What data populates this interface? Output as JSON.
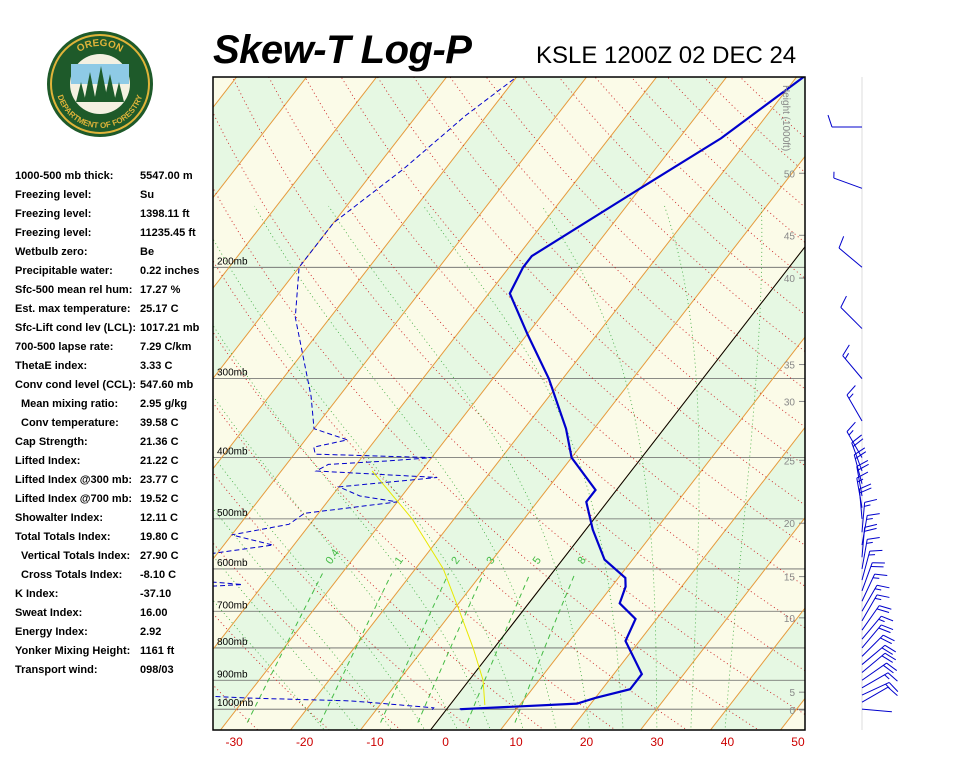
{
  "header": {
    "title": "Skew-T Log-P",
    "station_time": "KSLE 1200Z 02 DEC 24"
  },
  "logo": {
    "top_text": "OREGON",
    "bottom_text": "DEPARTMENT OF FORESTRY",
    "colors": {
      "ring": "#1e5a2a",
      "gold": "#e0b43a",
      "sky": "#8ecae6",
      "tree": "#1d5b2b"
    }
  },
  "stats": [
    {
      "label": "1000-500 mb thick:",
      "value": "5547.00 m",
      "indent": false
    },
    {
      "label": "Freezing level:",
      "value": "Su",
      "indent": false
    },
    {
      "label": "Freezing level:",
      "value": "1398.11 ft",
      "indent": false
    },
    {
      "label": "Freezing level:",
      "value": "11235.45 ft",
      "indent": false
    },
    {
      "label": "Wetbulb zero:",
      "value": "Be",
      "indent": false
    },
    {
      "label": "Precipitable water:",
      "value": "0.22 inches",
      "indent": false
    },
    {
      "label": "Sfc-500 mean rel hum:",
      "value": "17.27 %",
      "indent": false
    },
    {
      "label": "Est. max temperature:",
      "value": "25.17 C",
      "indent": false
    },
    {
      "label": "Sfc-Lift cond lev (LCL):",
      "value": "1017.21 mb",
      "indent": false
    },
    {
      "label": "700-500 lapse rate:",
      "value": "7.29 C/km",
      "indent": false
    },
    {
      "label": "ThetaE index:",
      "value": "3.33 C",
      "indent": false
    },
    {
      "label": "Conv cond level (CCL):",
      "value": "547.60 mb",
      "indent": false
    },
    {
      "label": "Mean mixing ratio:",
      "value": "2.95 g/kg",
      "indent": true
    },
    {
      "label": "Conv temperature:",
      "value": "39.58 C",
      "indent": true
    },
    {
      "label": "Cap Strength:",
      "value": "21.36 C",
      "indent": false
    },
    {
      "label": "Lifted Index:",
      "value": "21.22 C",
      "indent": false
    },
    {
      "label": "Lifted Index @300 mb:",
      "value": "23.77 C",
      "indent": false
    },
    {
      "label": "Lifted Index @700 mb:",
      "value": "19.52 C",
      "indent": false
    },
    {
      "label": "Showalter Index:",
      "value": "12.11 C",
      "indent": false
    },
    {
      "label": "Total Totals Index:",
      "value": "19.80 C",
      "indent": false
    },
    {
      "label": "Vertical Totals Index:",
      "value": "27.90 C",
      "indent": true
    },
    {
      "label": "Cross Totals Index:",
      "value": "-8.10 C",
      "indent": true
    },
    {
      "label": "K Index:",
      "value": "-37.10",
      "indent": false
    },
    {
      "label": "Sweat Index:",
      "value": "16.00",
      "indent": false
    },
    {
      "label": "Energy Index:",
      "value": "2.92",
      "indent": false
    },
    {
      "label": "Yonker Mixing Height:",
      "value": "1161 ft",
      "indent": false
    },
    {
      "label": "Transport wind:",
      "value": "098/03",
      "indent": false
    }
  ],
  "chart_data": {
    "type": "line",
    "xlabel": "",
    "ylabel": "",
    "x_ticks": [
      -30,
      -20,
      -10,
      0,
      10,
      20,
      30,
      40,
      50
    ],
    "x_range": [
      -33,
      51
    ],
    "p_range": [
      1050,
      100
    ],
    "log_pressure_axis": true,
    "skew": "isotherms tilted to the right",
    "pressure_labels": [
      {
        "p": 1000,
        "label": "1000mb"
      },
      {
        "p": 900,
        "label": "900mb"
      },
      {
        "p": 800,
        "label": "800mb"
      },
      {
        "p": 700,
        "label": "700mb"
      },
      {
        "p": 600,
        "label": "600mb"
      },
      {
        "p": 500,
        "label": "500mb"
      },
      {
        "p": 400,
        "label": "400mb"
      },
      {
        "p": 300,
        "label": "300mb"
      },
      {
        "p": 200,
        "label": "200mb"
      }
    ],
    "height_axis": {
      "title": "Height (1000ft)",
      "ticks": [
        {
          "v": "0",
          "p": 1003
        },
        {
          "v": "5",
          "p": 940
        },
        {
          "v": "10",
          "p": 717
        },
        {
          "v": "15",
          "p": 617
        },
        {
          "v": "20",
          "p": 508
        },
        {
          "v": "25",
          "p": 404
        },
        {
          "v": "30",
          "p": 326
        },
        {
          "v": "35",
          "p": 285
        },
        {
          "v": "40",
          "p": 208
        },
        {
          "v": "45",
          "p": 178
        },
        {
          "v": "50",
          "p": 142
        }
      ]
    },
    "mixing_ratio_labels": [
      "0.4",
      "1",
      "2",
      "3",
      "5",
      "8"
    ],
    "series": [
      {
        "role": "temperature",
        "color": "#0000cc",
        "points": [
          [
            1002,
            2
          ],
          [
            1000,
            2
          ],
          [
            990,
            10
          ],
          [
            980,
            18
          ],
          [
            960,
            20
          ],
          [
            930,
            24
          ],
          [
            880,
            24
          ],
          [
            780,
            18
          ],
          [
            720,
            17
          ],
          [
            680,
            13
          ],
          [
            640,
            12
          ],
          [
            620,
            11
          ],
          [
            580,
            6
          ],
          [
            520,
            1
          ],
          [
            470,
            -3
          ],
          [
            450,
            -3
          ],
          [
            400,
            -10
          ],
          [
            360,
            -14
          ],
          [
            300,
            -22
          ],
          [
            255,
            -30
          ],
          [
            220,
            -37
          ],
          [
            200,
            -38
          ],
          [
            192,
            -38
          ],
          [
            150,
            -30
          ],
          [
            125,
            -24
          ],
          [
            100,
            -19
          ]
        ]
      },
      {
        "role": "dewpoint",
        "color": "#0000cc",
        "dashed": true,
        "points": [
          [
            1002,
            -2
          ],
          [
            995,
            -2
          ],
          [
            985,
            -7
          ],
          [
            975,
            -12
          ],
          [
            970,
            -15
          ],
          [
            960,
            -30
          ],
          [
            940,
            -47
          ],
          [
            910,
            -55
          ],
          [
            880,
            -54
          ],
          [
            850,
            -58
          ],
          [
            820,
            -46
          ],
          [
            800,
            -48
          ],
          [
            780,
            -52
          ],
          [
            760,
            -56
          ],
          [
            740,
            -60
          ],
          [
            720,
            -62
          ],
          [
            700,
            -64
          ],
          [
            690,
            -49
          ],
          [
            680,
            -62
          ],
          [
            665,
            -51
          ],
          [
            650,
            -59
          ],
          [
            635,
            -43
          ],
          [
            625,
            -51
          ],
          [
            610,
            -59
          ],
          [
            590,
            -51
          ],
          [
            570,
            -52
          ],
          [
            550,
            -43
          ],
          [
            530,
            -50
          ],
          [
            510,
            -43
          ],
          [
            490,
            -42
          ],
          [
            470,
            -30
          ],
          [
            460,
            -36
          ],
          [
            445,
            -40
          ],
          [
            430,
            -27
          ],
          [
            420,
            -45
          ],
          [
            410,
            -44
          ],
          [
            405,
            -36
          ],
          [
            400,
            -30
          ],
          [
            395,
            -47
          ],
          [
            385,
            -48
          ],
          [
            375,
            -44
          ],
          [
            360,
            -50
          ],
          [
            320,
            -54
          ],
          [
            240,
            -65
          ],
          [
            200,
            -70
          ],
          [
            170,
            -70
          ],
          [
            140,
            -66
          ],
          [
            115,
            -63
          ],
          [
            100,
            -60
          ]
        ]
      },
      {
        "role": "parcel",
        "color": "#e8e800",
        "points": [
          [
            985,
            5
          ],
          [
            900,
            2
          ],
          [
            800,
            -3
          ],
          [
            700,
            -9
          ],
          [
            600,
            -16
          ],
          [
            500,
            -26
          ],
          [
            420,
            -37
          ]
        ]
      }
    ],
    "winds": [
      {
        "p": 1000,
        "dir": 95,
        "speed": 3
      },
      {
        "p": 975,
        "dir": 60,
        "speed": 10
      },
      {
        "p": 950,
        "dir": 65,
        "speed": 15
      },
      {
        "p": 925,
        "dir": 60,
        "speed": 15
      },
      {
        "p": 900,
        "dir": 55,
        "speed": 20
      },
      {
        "p": 875,
        "dir": 50,
        "speed": 20
      },
      {
        "p": 850,
        "dir": 50,
        "speed": 20
      },
      {
        "p": 825,
        "dir": 45,
        "speed": 20
      },
      {
        "p": 800,
        "dir": 40,
        "speed": 20
      },
      {
        "p": 775,
        "dir": 40,
        "speed": 15
      },
      {
        "p": 750,
        "dir": 35,
        "speed": 20
      },
      {
        "p": 725,
        "dir": 30,
        "speed": 15
      },
      {
        "p": 700,
        "dir": 30,
        "speed": 15
      },
      {
        "p": 675,
        "dir": 25,
        "speed": 15
      },
      {
        "p": 650,
        "dir": 20,
        "speed": 20
      },
      {
        "p": 625,
        "dir": 15,
        "speed": 15
      },
      {
        "p": 600,
        "dir": 10,
        "speed": 15
      },
      {
        "p": 575,
        "dir": 5,
        "speed": 20
      },
      {
        "p": 550,
        "dir": 10,
        "speed": 15
      },
      {
        "p": 525,
        "dir": 5,
        "speed": 15
      },
      {
        "p": 500,
        "dir": 355,
        "speed": 20
      },
      {
        "p": 480,
        "dir": 350,
        "speed": 15
      },
      {
        "p": 460,
        "dir": 350,
        "speed": 20
      },
      {
        "p": 440,
        "dir": 345,
        "speed": 20
      },
      {
        "p": 420,
        "dir": 340,
        "speed": 20
      },
      {
        "p": 400,
        "dir": 330,
        "speed": 15
      },
      {
        "p": 350,
        "dir": 330,
        "speed": 15
      },
      {
        "p": 300,
        "dir": 320,
        "speed": 15
      },
      {
        "p": 250,
        "dir": 315,
        "speed": 10
      },
      {
        "p": 200,
        "dir": 310,
        "speed": 10
      },
      {
        "p": 150,
        "dir": 290,
        "speed": 5
      },
      {
        "p": 120,
        "dir": 270,
        "speed": 10
      }
    ]
  }
}
